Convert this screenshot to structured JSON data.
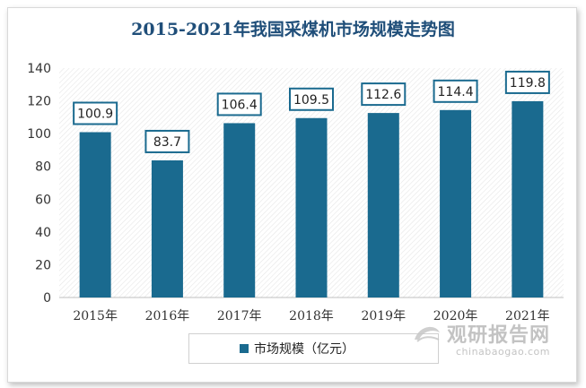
{
  "chart_data": {
    "type": "bar",
    "title": "2015-2021年我国采煤机市场规模走势图",
    "categories": [
      "2015年",
      "2016年",
      "2017年",
      "2018年",
      "2019年",
      "2020年",
      "2021年"
    ],
    "series": [
      {
        "name": "市场规模（亿元）",
        "values": [
          100.9,
          83.7,
          106.4,
          109.5,
          112.6,
          114.4,
          119.8
        ]
      }
    ],
    "data_labels": [
      "100.9",
      "83.7",
      "106.4",
      "109.5",
      "112.6",
      "114.4",
      "119.8"
    ],
    "yticks": [
      "0",
      "20",
      "40",
      "60",
      "80",
      "100",
      "120",
      "140"
    ],
    "ylim": [
      0,
      140
    ],
    "xlabel": "",
    "ylabel": "",
    "legend_position": "bottom",
    "grid": false,
    "bar_color": "#1a6a8f",
    "title_color": "#1f4e79"
  },
  "watermark": {
    "cn": "观研报告网",
    "en": "chinabaogao.com",
    "icon": "watermark-logo-icon"
  }
}
